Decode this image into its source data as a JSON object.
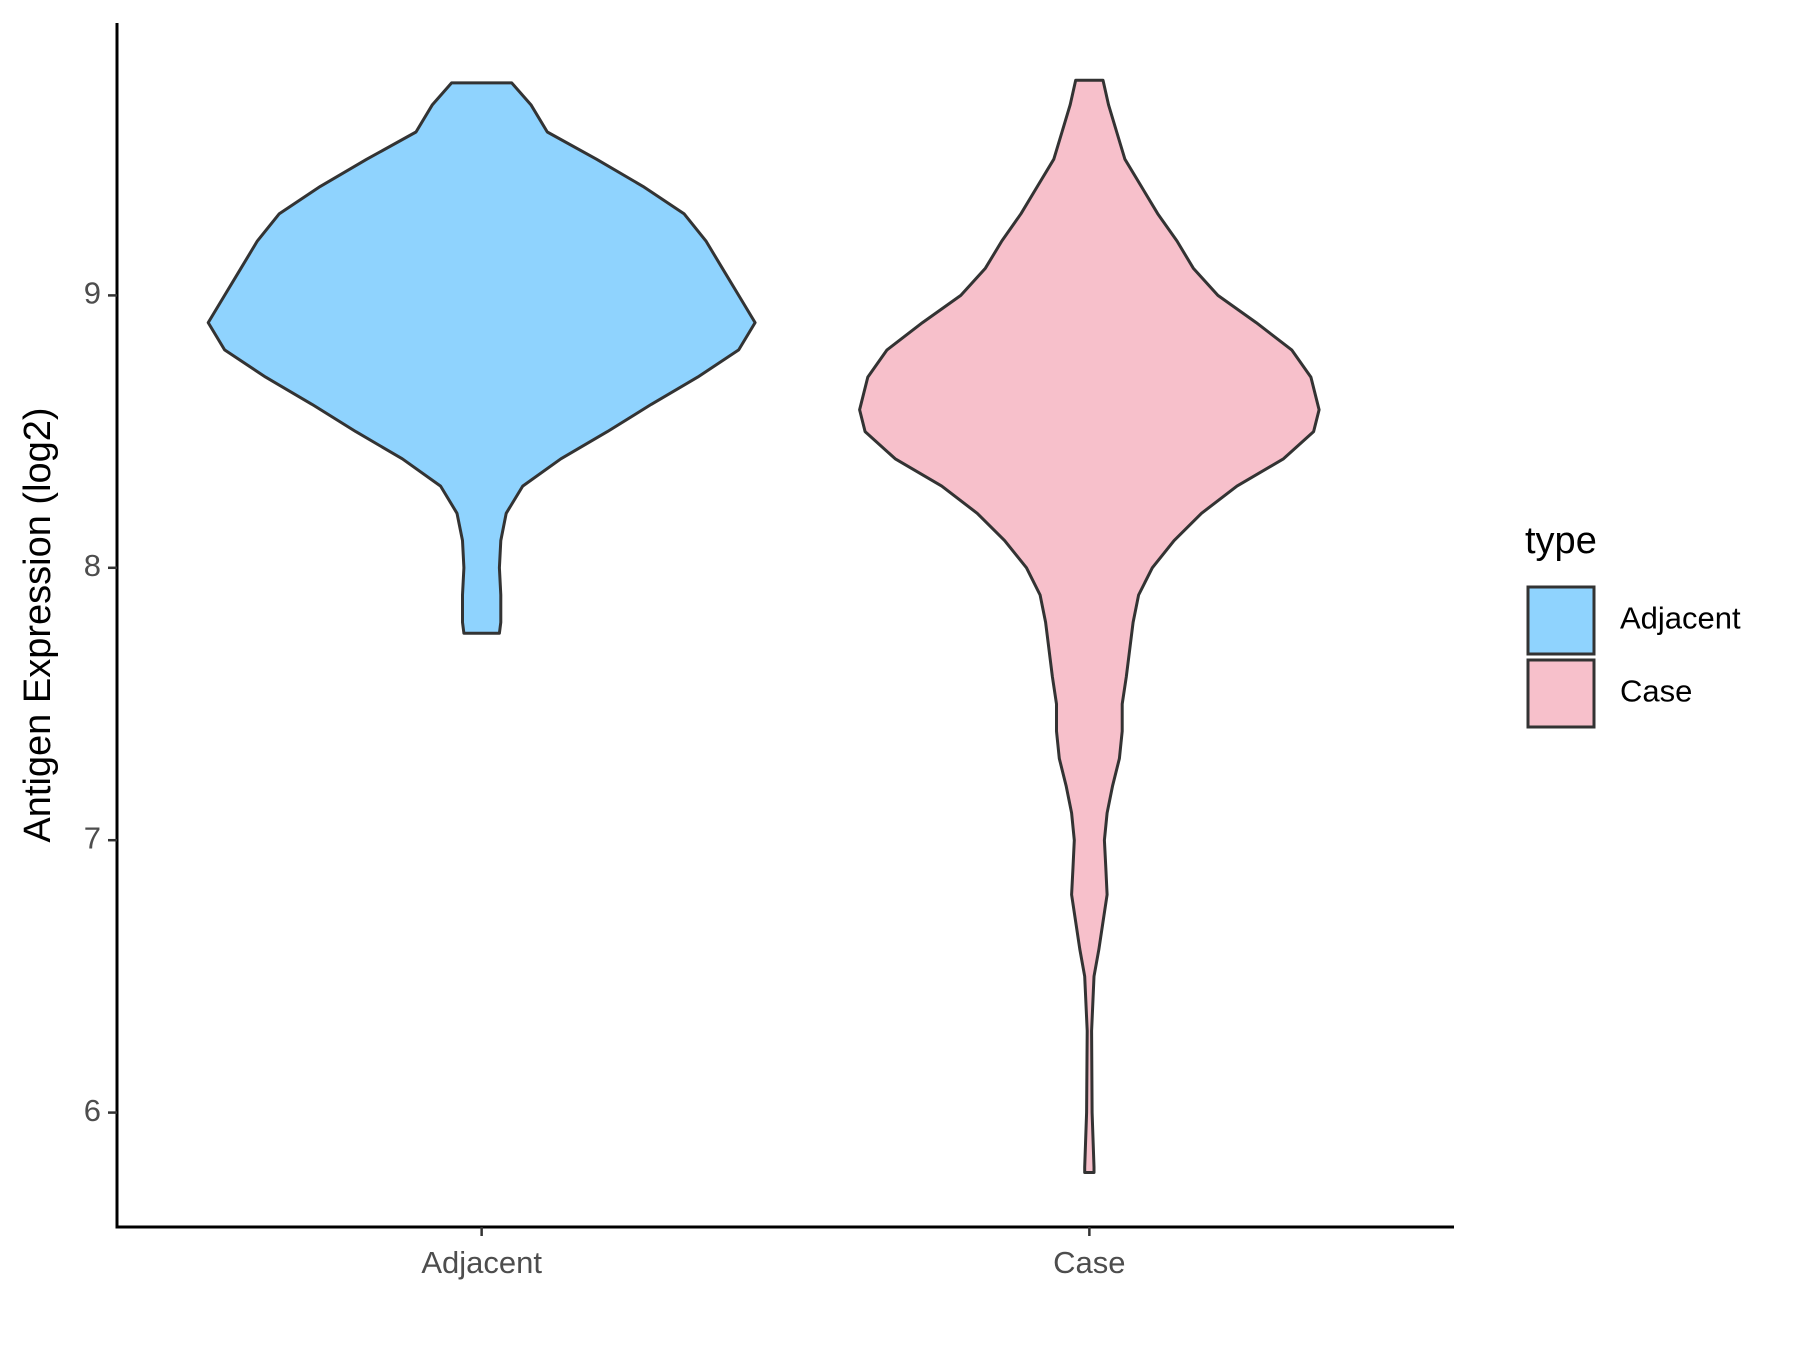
{
  "chart_data": {
    "type": "violin",
    "y_label": "Antigen Expression (log2)",
    "categories": [
      "Adjacent",
      "Case"
    ],
    "legend_title": "type",
    "legend_position": "right",
    "ylim": [
      5.58,
      10.0
    ],
    "yticks": [
      6,
      7,
      8,
      9
    ],
    "grid": false,
    "series": [
      {
        "name": "Adjacent",
        "color": "#8fd3fe",
        "y": [
          7.76,
          7.8,
          7.9,
          8.0,
          8.1,
          8.2,
          8.3,
          8.4,
          8.5,
          8.6,
          8.7,
          8.8,
          8.9,
          9.0,
          9.1,
          9.2,
          9.3,
          9.4,
          9.5,
          9.6,
          9.7,
          9.78
        ],
        "density": [
          0.065,
          0.07,
          0.07,
          0.065,
          0.07,
          0.09,
          0.15,
          0.29,
          0.46,
          0.62,
          0.79,
          0.94,
          1.0,
          0.94,
          0.88,
          0.82,
          0.74,
          0.59,
          0.42,
          0.24,
          0.18,
          0.11
        ]
      },
      {
        "name": "Case",
        "color": "#f7c0cb",
        "y": [
          5.78,
          5.8,
          6.0,
          6.3,
          6.5,
          6.6,
          6.7,
          6.8,
          6.9,
          7.0,
          7.1,
          7.2,
          7.3,
          7.4,
          7.5,
          7.6,
          7.8,
          7.9,
          8.0,
          8.1,
          8.2,
          8.3,
          8.4,
          8.5,
          8.58,
          8.7,
          8.8,
          8.9,
          9.0,
          9.1,
          9.2,
          9.3,
          9.4,
          9.5,
          9.6,
          9.7,
          9.79
        ],
        "density": [
          0.017,
          0.017,
          0.01,
          0.008,
          0.017,
          0.035,
          0.05,
          0.065,
          0.06,
          0.055,
          0.065,
          0.085,
          0.11,
          0.12,
          0.12,
          0.135,
          0.16,
          0.18,
          0.23,
          0.31,
          0.41,
          0.54,
          0.71,
          0.82,
          0.84,
          0.81,
          0.74,
          0.61,
          0.47,
          0.38,
          0.32,
          0.25,
          0.19,
          0.13,
          0.1,
          0.07,
          0.05
        ]
      }
    ]
  }
}
